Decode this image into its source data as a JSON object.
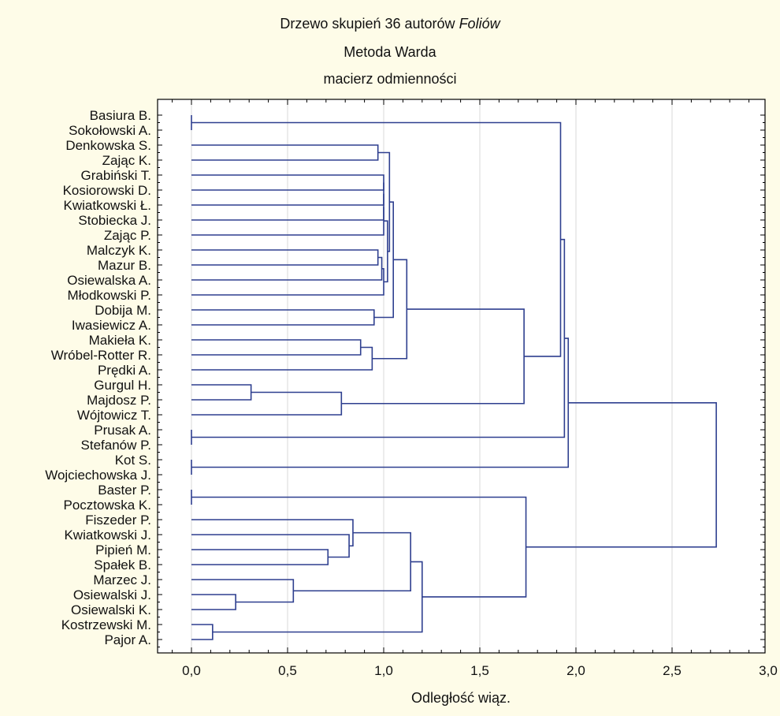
{
  "chart_data": {
    "type": "dendrogram",
    "title_main": "Drzewo skupień 36 autorów",
    "title_italic": "Foliów",
    "subtitle1": "Metoda Warda",
    "subtitle2": "macierz odmienności",
    "xlabel": "Odległość wiąz.",
    "xlim": [
      -0.2,
      3.0
    ],
    "xticks": [
      "0,0",
      "0,5",
      "1,0",
      "1,5",
      "2,0",
      "2,5",
      "3,0"
    ],
    "xtick_values": [
      0,
      0.5,
      1.0,
      1.5,
      2.0,
      2.5,
      3.0
    ],
    "grid": "vertical",
    "line_color": "#2e3f8f",
    "leaves": [
      "Basiura B.",
      "Sokołowski A.",
      "Denkowska S.",
      "Zając K.",
      "Grabiński T.",
      "Kosiorowski D.",
      "Kwiatkowski Ł.",
      "Stobiecka J.",
      "Zając P.",
      "Malczyk K.",
      "Mazur B.",
      "Osiewalska A.",
      "Młodkowski P.",
      "Dobija M.",
      "Iwasiewicz A.",
      "Makieła K.",
      "Wróbel-Rotter R.",
      "Prędki A.",
      "Gurgul H.",
      "Majdosz P.",
      "Wójtowicz T.",
      "Prusak A.",
      "Stefanów P.",
      "Kot S.",
      "Wojciechowska J.",
      "Baster P.",
      "Pocztowska K.",
      "Fiszeder P.",
      "Kwiatkowski J.",
      "Pipień M.",
      "Spałek B.",
      "Marzec J.",
      "Osiewalski J.",
      "Osiewalski K.",
      "Kostrzewski M.",
      "Pajor A."
    ],
    "merges": [
      {
        "a": 0,
        "b": 1,
        "h": 0.0
      },
      {
        "a": 21,
        "b": 22,
        "h": 0.0
      },
      {
        "a": 23,
        "b": 24,
        "h": 0.0
      },
      {
        "a": 25,
        "b": 26,
        "h": 0.0
      },
      {
        "a": 34,
        "b": 35,
        "h": 0.11
      },
      {
        "a": 32,
        "b": 33,
        "h": 0.23
      },
      {
        "a": 18,
        "b": 19,
        "h": 0.31
      },
      {
        "a": 31,
        "b": "n6",
        "h": 0.53
      },
      {
        "a": 29,
        "b": 30,
        "h": 0.71
      },
      {
        "a": "n7",
        "b": 20,
        "h": 0.78
      },
      {
        "a": 28,
        "b": "n9",
        "h": 0.82
      },
      {
        "a": 27,
        "b": "n11",
        "h": 0.84
      },
      {
        "a": 15,
        "b": 16,
        "h": 0.88
      },
      {
        "a": "n13",
        "b": 17,
        "h": 0.94
      },
      {
        "a": 13,
        "b": 14,
        "h": 0.95
      },
      {
        "a": 2,
        "b": 3,
        "h": 0.97
      },
      {
        "a": 9,
        "b": 10,
        "h": 0.97
      },
      {
        "a": "n17",
        "b": 11,
        "h": 0.99
      },
      {
        "a": 4,
        "b": 5,
        "h": 1.0
      },
      {
        "a": "n19",
        "b": 6,
        "h": 1.0
      },
      {
        "a": "n20",
        "b": 7,
        "h": 1.0
      },
      {
        "a": "n21",
        "b": 8,
        "h": 1.0
      },
      {
        "a": "n18",
        "b": 12,
        "h": 1.0
      },
      {
        "a": "n22",
        "b": "n23",
        "h": 1.02
      },
      {
        "a": "n16",
        "b": "n24",
        "h": 1.03
      },
      {
        "a": "n25",
        "b": "n15",
        "h": 1.05
      },
      {
        "a": "n26",
        "b": "n14",
        "h": 1.12
      },
      {
        "a": "n12",
        "b": "n8",
        "h": 1.14
      },
      {
        "a": "n28",
        "b": "n5",
        "h": 1.2
      },
      {
        "a": "n27",
        "b": "n10",
        "h": 1.73
      },
      {
        "a": "n4",
        "b": "n29",
        "h": 1.74
      },
      {
        "a": "n1",
        "b": "n30",
        "h": 1.92
      },
      {
        "a": "n32",
        "b": "n2",
        "h": 1.94
      },
      {
        "a": "n33",
        "b": "n3",
        "h": 1.96
      },
      {
        "a": "n34",
        "b": "n31",
        "h": 2.73
      }
    ]
  }
}
